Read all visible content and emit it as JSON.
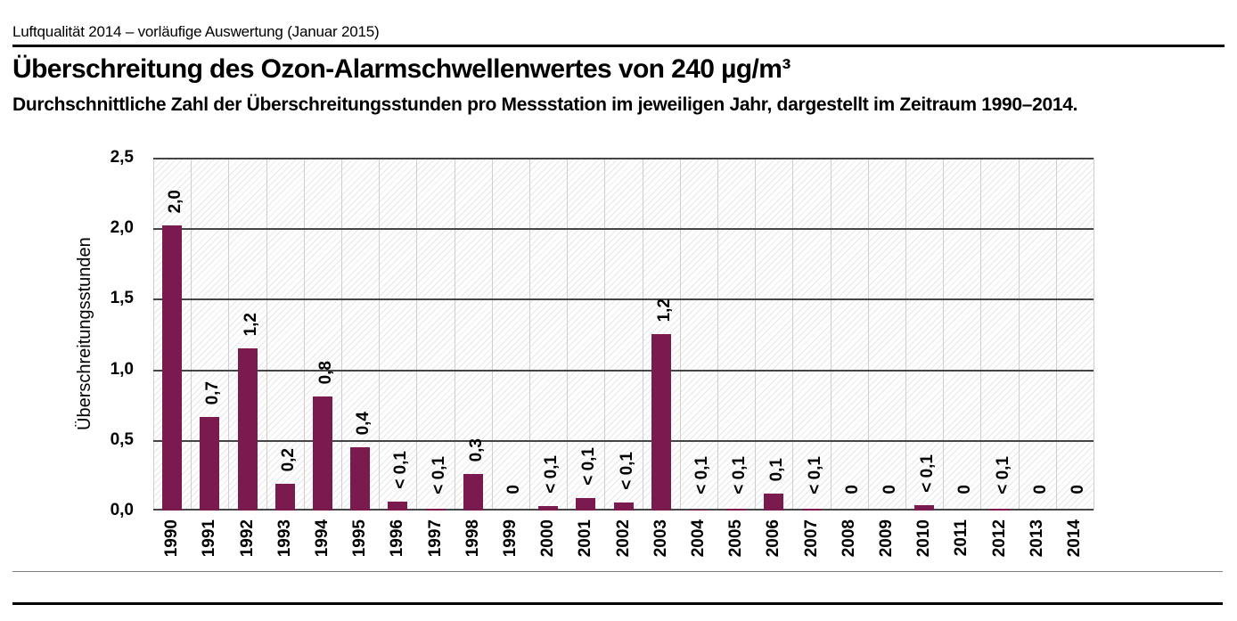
{
  "page": {
    "kicker": "Luftqualität 2014 – vorläufige Auswertung (Januar 2015)",
    "title": "Überschreitung des Ozon-Alarmschwellenwertes von 240 µg/m³",
    "subtitle": "Durchschnittliche Zahl der Überschreitungsstunden pro Messstation im jeweiligen Jahr, dargestellt im Zeitraum 1990–2014."
  },
  "chart_data": {
    "type": "bar",
    "title": "Überschreitung des Ozon-Alarmschwellenwertes von 240 µg/m³",
    "xlabel": "",
    "ylabel": "Überschreitungsstunden",
    "ylim": [
      0,
      2.5
    ],
    "ytick_values": [
      2.5,
      2.0,
      1.5,
      1.0,
      0.5,
      0.0
    ],
    "ytick_labels": [
      "2,5",
      "2,0",
      "1,5",
      "1,0",
      "0,5",
      "0,0"
    ],
    "grid": "horizontal dark lines every 0.5; light vertical separators per year; hatched plot background",
    "legend": "none",
    "bar_color": "#7a1a4f",
    "categories": [
      "1990",
      "1991",
      "1992",
      "1993",
      "1994",
      "1995",
      "1996",
      "1997",
      "1998",
      "1999",
      "2000",
      "2001",
      "2002",
      "2003",
      "2004",
      "2005",
      "2006",
      "2007",
      "2008",
      "2009",
      "2010",
      "2011",
      "2012",
      "2013",
      "2014"
    ],
    "values": [
      2.02,
      0.66,
      1.15,
      0.19,
      0.81,
      0.45,
      0.06,
      0.01,
      0.26,
      0,
      0.03,
      0.09,
      0.055,
      1.25,
      0.005,
      0.015,
      0.12,
      0.015,
      0,
      0,
      0.04,
      0,
      0.01,
      0,
      0
    ],
    "value_labels": [
      "2,0",
      "0,7",
      "1,2",
      "0,2",
      "0,8",
      "0,4",
      "< 0,1",
      "< 0,1",
      "0,3",
      "0",
      "< 0,1",
      "< 0,1",
      "< 0,1",
      "1,2",
      "< 0,1",
      "< 0,1",
      "0,1",
      "< 0,1",
      "0",
      "0",
      "< 0,1",
      "0",
      "< 0,1",
      "0",
      "0"
    ]
  }
}
